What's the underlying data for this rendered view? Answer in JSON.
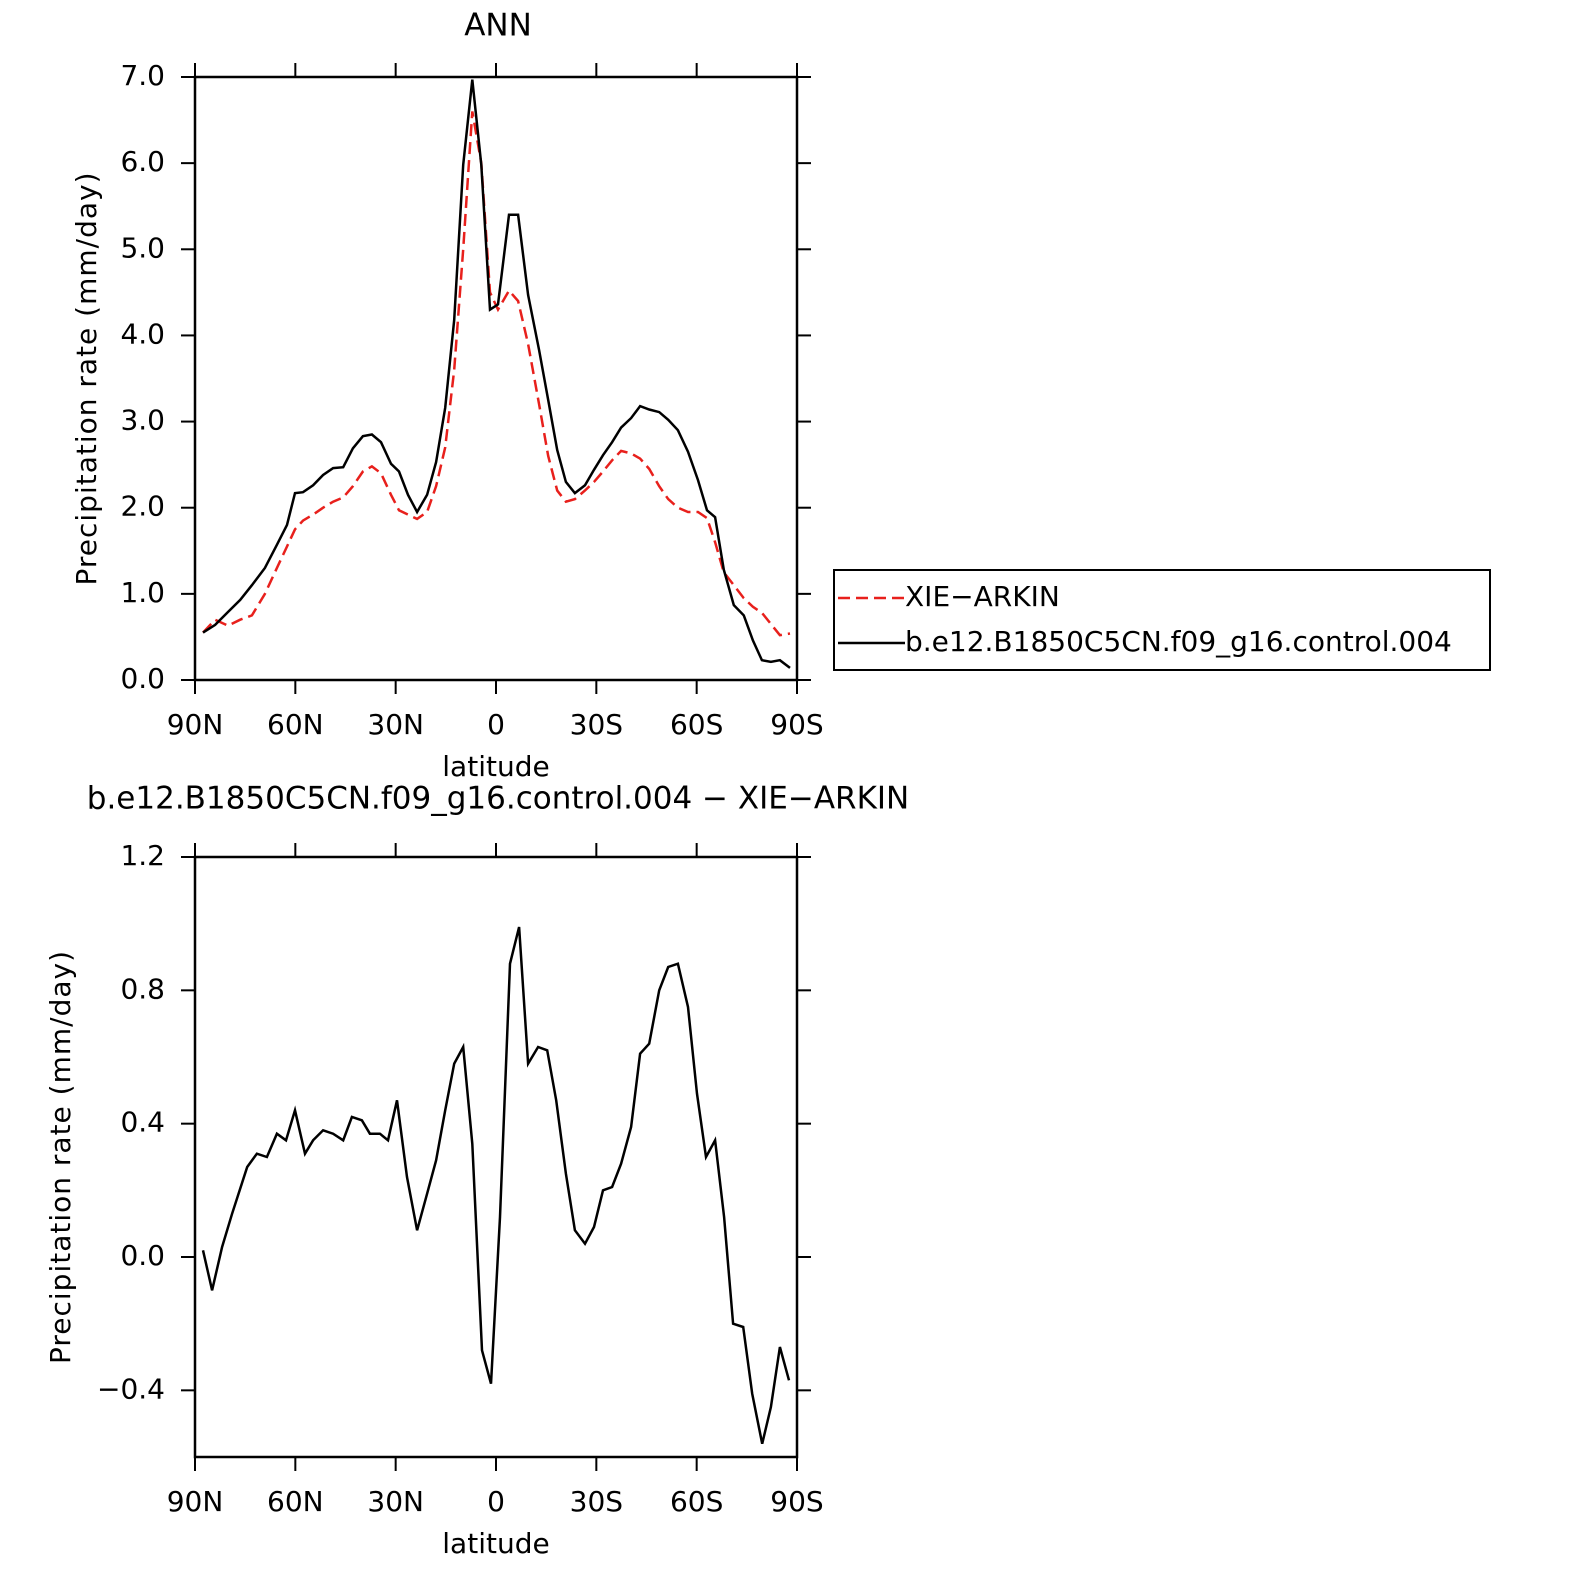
{
  "chart_data": [
    {
      "type": "line",
      "title": "ANN",
      "xlabel": "latitude",
      "ylabel": "Precipitation rate (mm/day)",
      "x": [
        87.6,
        84,
        80.1,
        76.5,
        73,
        69.1,
        65.5,
        62.5,
        60.1,
        57.7,
        54.7,
        51.7,
        48.7,
        45.7,
        42.8,
        39.8,
        37.1,
        34.4,
        31.4,
        29,
        26.3,
        23.6,
        20.6,
        17.9,
        15.2,
        12.5,
        9.8,
        7.1,
        4.4,
        1.8,
        -0.6,
        -3.9,
        -6.6,
        -9.6,
        -12.9,
        -15.6,
        -18.3,
        -20.9,
        -23.6,
        -26.6,
        -29.3,
        -32,
        -34.7,
        -37.4,
        -40.4,
        -43.1,
        -45.8,
        -48.8,
        -51.5,
        -54.4,
        -57.4,
        -60.4,
        -63.1,
        -65.5,
        -68.1,
        -71.1,
        -74.1,
        -76.8,
        -79.5,
        -82.2,
        -84.9,
        -87.9
      ],
      "series": [
        {
          "name": "XIE−ARKIN",
          "color": "#e8201c",
          "style": "dashed",
          "values": [
            0.55,
            0.7,
            0.63,
            0.7,
            0.75,
            1.0,
            1.3,
            1.55,
            1.75,
            1.85,
            1.92,
            2.0,
            2.07,
            2.12,
            2.25,
            2.42,
            2.48,
            2.4,
            2.15,
            1.97,
            1.92,
            1.87,
            1.95,
            2.25,
            2.7,
            3.6,
            5.0,
            6.6,
            6.0,
            4.5,
            4.3,
            4.52,
            4.4,
            3.9,
            3.2,
            2.6,
            2.2,
            2.07,
            2.1,
            2.2,
            2.3,
            2.42,
            2.55,
            2.66,
            2.63,
            2.57,
            2.45,
            2.25,
            2.1,
            2.0,
            1.95,
            1.95,
            1.88,
            1.6,
            1.25,
            1.1,
            0.95,
            0.85,
            0.78,
            0.65,
            0.52,
            0.54
          ]
        },
        {
          "name": "b.e12.B1850C5CN.f09_g16.control.004",
          "color": "#000000",
          "style": "solid",
          "values": [
            0.55,
            0.64,
            0.79,
            0.93,
            1.1,
            1.3,
            1.57,
            1.8,
            2.17,
            2.18,
            2.26,
            2.38,
            2.46,
            2.47,
            2.69,
            2.83,
            2.85,
            2.76,
            2.51,
            2.42,
            2.15,
            1.95,
            2.15,
            2.53,
            3.16,
            4.18,
            5.98,
            6.97,
            5.98,
            4.3,
            4.36,
            5.4,
            5.4,
            4.47,
            3.83,
            3.25,
            2.67,
            2.3,
            2.17,
            2.26,
            2.44,
            2.61,
            2.76,
            2.93,
            3.04,
            3.18,
            3.14,
            3.11,
            3.02,
            2.9,
            2.65,
            2.32,
            1.97,
            1.89,
            1.28,
            0.87,
            0.75,
            0.46,
            0.23,
            0.21,
            0.23,
            0.14
          ]
        }
      ],
      "xlim": [
        90,
        -90
      ],
      "xticks": [
        {
          "value": 90,
          "label": "90N"
        },
        {
          "value": 60,
          "label": "60N"
        },
        {
          "value": 30,
          "label": "30N"
        },
        0,
        {
          "value": -30,
          "label": "30S"
        },
        {
          "value": -60,
          "label": "60S"
        },
        {
          "value": -90,
          "label": "90S"
        }
      ],
      "ylim": [
        0,
        7
      ],
      "yticks": [
        {
          "value": 0,
          "label": "0.0"
        },
        {
          "value": 1,
          "label": "1.0"
        },
        {
          "value": 2,
          "label": "2.0"
        },
        {
          "value": 3,
          "label": "3.0"
        },
        {
          "value": 4,
          "label": "4.0"
        },
        {
          "value": 5,
          "label": "5.0"
        },
        {
          "value": 6,
          "label": "6.0"
        },
        {
          "value": 7,
          "label": "7.0"
        }
      ],
      "legend": "right"
    },
    {
      "type": "line",
      "title": "b.e12.B1850C5CN.f09_g16.control.004 − XIE−ARKIN",
      "xlabel": "latitude",
      "ylabel": "Precipitation rate (mm/day)",
      "x": [
        87.6,
        84.9,
        81.9,
        78.9,
        74.4,
        71.5,
        68.5,
        65.5,
        62.8,
        60.1,
        57.1,
        54.7,
        51.7,
        48.7,
        45.7,
        43.1,
        40.1,
        37.7,
        34.7,
        32.3,
        29.6,
        26.6,
        23.6,
        20.6,
        17.9,
        15.2,
        12.5,
        9.8,
        7.1,
        4.2,
        1.5,
        -1.2,
        -4.2,
        -6.9,
        -9.6,
        -12.6,
        -15.3,
        -18.0,
        -20.9,
        -23.6,
        -26.6,
        -29.3,
        -32.0,
        -34.7,
        -37.4,
        -40.4,
        -43.1,
        -45.8,
        -48.8,
        -51.5,
        -54.4,
        -57.4,
        -60.1,
        -62.8,
        -65.5,
        -68.2,
        -70.9,
        -73.9,
        -76.6,
        -79.6,
        -82.2,
        -84.9,
        -87.6
      ],
      "series": [
        {
          "color": "#000000",
          "style": "solid",
          "values": [
            0.02,
            -0.1,
            0.03,
            0.13,
            0.27,
            0.31,
            0.3,
            0.37,
            0.35,
            0.44,
            0.31,
            0.35,
            0.38,
            0.37,
            0.35,
            0.42,
            0.41,
            0.37,
            0.37,
            0.35,
            0.47,
            0.24,
            0.08,
            0.19,
            0.29,
            0.44,
            0.58,
            0.63,
            0.34,
            -0.28,
            -0.38,
            0.12,
            0.88,
            0.99,
            0.58,
            0.63,
            0.62,
            0.47,
            0.25,
            0.08,
            0.04,
            0.09,
            0.2,
            0.21,
            0.28,
            0.39,
            0.61,
            0.64,
            0.8,
            0.87,
            0.88,
            0.75,
            0.49,
            0.3,
            0.35,
            0.12,
            -0.2,
            -0.21,
            -0.41,
            -0.56,
            -0.45,
            -0.27,
            -0.37
          ]
        }
      ],
      "xlim": [
        90,
        -90
      ],
      "xticks": [
        {
          "value": 90,
          "label": "90N"
        },
        {
          "value": 60,
          "label": "60N"
        },
        {
          "value": 30,
          "label": "30N"
        },
        0,
        {
          "value": -30,
          "label": "30S"
        },
        {
          "value": -60,
          "label": "60S"
        },
        {
          "value": -90,
          "label": "90S"
        }
      ],
      "ylim": [
        -0.6,
        1.2
      ],
      "yticks": [
        {
          "value": -0.4,
          "label": "−0.4"
        },
        {
          "value": 0,
          "label": "0.0"
        },
        0.4,
        0.8,
        1.2
      ]
    }
  ]
}
